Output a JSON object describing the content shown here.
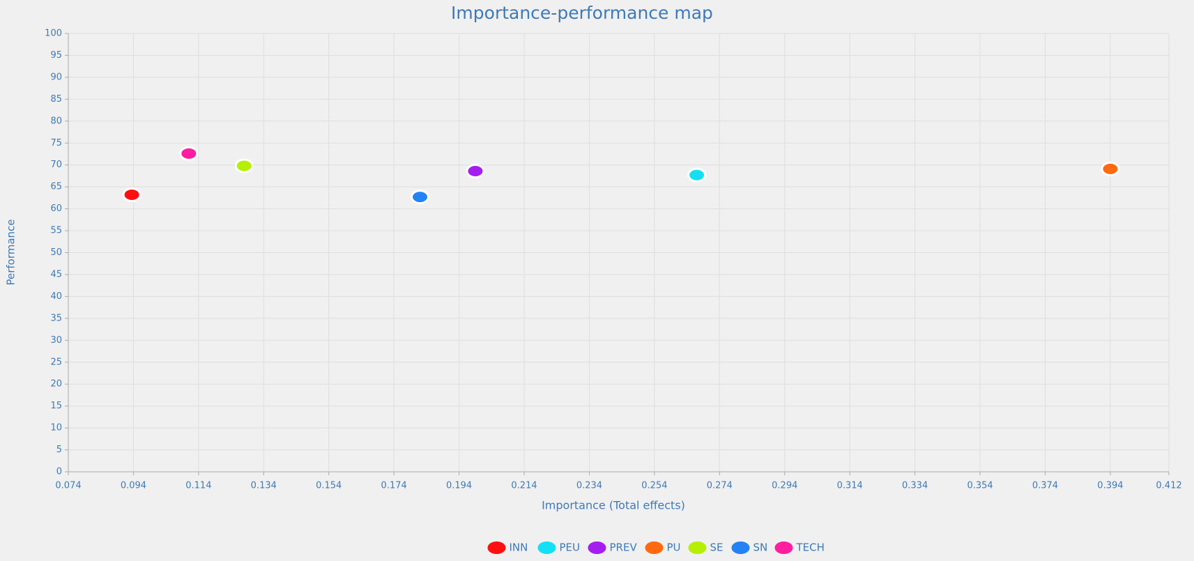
{
  "chart_data": {
    "type": "scatter",
    "title": "Importance-performance map",
    "x_label": "Importance (Total effects)",
    "y_label": "Performance",
    "xlim": [
      0.074,
      0.412
    ],
    "xticks": [
      0.074,
      0.094,
      0.114,
      0.134,
      0.154,
      0.174,
      0.194,
      0.214,
      0.234,
      0.254,
      0.274,
      0.294,
      0.314,
      0.334,
      0.354,
      0.374,
      0.394,
      0.412
    ],
    "ylim": [
      0,
      100
    ],
    "yticks": [
      0,
      5,
      10,
      15,
      20,
      25,
      30,
      35,
      40,
      45,
      50,
      55,
      60,
      65,
      70,
      75,
      80,
      85,
      90,
      95,
      100
    ],
    "grid": true,
    "legend": "bottom",
    "series": [
      {
        "name": "INN",
        "color": "#ff1010",
        "x": [
          0.0935
        ],
        "values": [
          63.2
        ]
      },
      {
        "name": "PEU",
        "color": "#14e0f5",
        "x": [
          0.267
        ],
        "values": [
          67.7
        ]
      },
      {
        "name": "PREV",
        "color": "#a51ef0",
        "x": [
          0.199
        ],
        "values": [
          68.6
        ]
      },
      {
        "name": "PU",
        "color": "#ff6a10",
        "x": [
          0.394
        ],
        "values": [
          69.1
        ]
      },
      {
        "name": "SE",
        "color": "#b4f000",
        "x": [
          0.128
        ],
        "values": [
          69.8
        ]
      },
      {
        "name": "SN",
        "color": "#2382f5",
        "x": [
          0.182
        ],
        "values": [
          62.7
        ]
      },
      {
        "name": "TECH",
        "color": "#ff1ea0",
        "x": [
          0.111
        ],
        "values": [
          72.6
        ]
      }
    ]
  }
}
